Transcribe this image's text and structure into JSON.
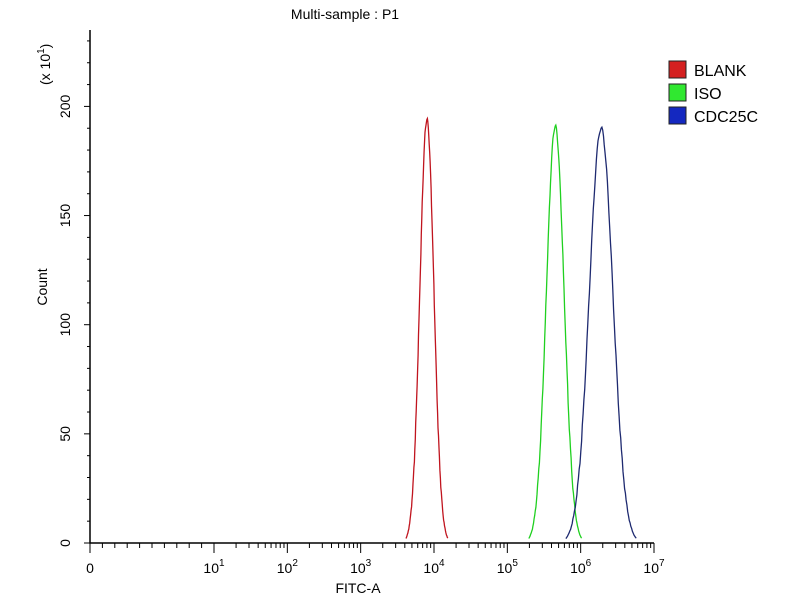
{
  "chart_data": {
    "type": "line",
    "title": "Multi-sample : P1",
    "xlabel": "FITC-A",
    "ylabel": "Count",
    "y_multiplier_label": "(x 10^1)",
    "x_scale": "biexponential-log",
    "xlim": [
      0,
      10000000
    ],
    "ylim": [
      0,
      235
    ],
    "x_ticks": [
      {
        "value": 0,
        "base": "0",
        "exp": ""
      },
      {
        "value": 10,
        "base": "10",
        "exp": "1"
      },
      {
        "value": 100,
        "base": "10",
        "exp": "2"
      },
      {
        "value": 1000,
        "base": "10",
        "exp": "3"
      },
      {
        "value": 10000,
        "base": "10",
        "exp": "4"
      },
      {
        "value": 100000,
        "base": "10",
        "exp": "5"
      },
      {
        "value": 1000000,
        "base": "10",
        "exp": "6"
      },
      {
        "value": 10000000,
        "base": "10",
        "exp": "7"
      }
    ],
    "y_ticks": [
      "0",
      "50",
      "100",
      "150",
      "200"
    ],
    "y_tick_values": [
      0,
      50,
      100,
      150,
      200
    ],
    "legend_position": "top-right",
    "grid": false,
    "series": [
      {
        "name": "BLANK",
        "color": "#c0141e",
        "swatch": "#d42020",
        "peak_x": 8000,
        "peak_y": 194,
        "log_sigma": 0.095
      },
      {
        "name": "ISO",
        "color": "#20d020",
        "swatch": "#30e830",
        "peak_x": 450000,
        "peak_y": 191,
        "log_sigma": 0.12
      },
      {
        "name": "CDC25C",
        "color": "#1e2a70",
        "swatch": "#1428c0",
        "peak_x": 1900000,
        "peak_y": 190,
        "log_sigma": 0.16
      }
    ]
  }
}
